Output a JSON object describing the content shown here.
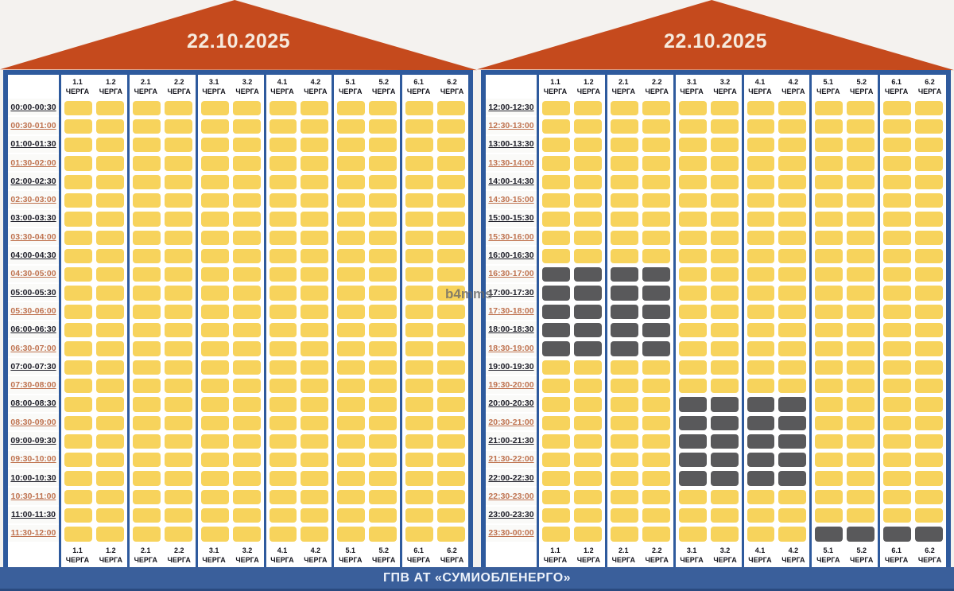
{
  "watermark": "b4mms",
  "footer": {
    "title": "ГПВ АТ «СУМИОБЛЕНЕРГО»"
  },
  "queue_label": "ЧЕРГА",
  "colors": {
    "roof_orange": "#C54A1D",
    "border_blue": "#2E5A9D",
    "footer_blue": "#3A5F9B",
    "cell_on": "#F7D35C",
    "cell_off": "#59595B",
    "time_text_dark": "#20202A",
    "time_text_orange": "#BF7350"
  },
  "chart_data": {
    "type": "heatmap",
    "columns": [
      "1.1",
      "1.2",
      "2.1",
      "2.2",
      "3.1",
      "3.2",
      "4.1",
      "4.2",
      "5.1",
      "5.2",
      "6.1",
      "6.2"
    ],
    "cell_states": {
      "on": "#F7D35C",
      "off": "#59595B"
    },
    "panels": [
      {
        "date": "22.10.2025",
        "times": [
          "00:00-00:30",
          "00:30-01:00",
          "01:00-01:30",
          "01:30-02:00",
          "02:00-02:30",
          "02:30-03:00",
          "03:00-03:30",
          "03:30-04:00",
          "04:00-04:30",
          "04:30-05:00",
          "05:00-05:30",
          "05:30-06:00",
          "06:00-06:30",
          "06:30-07:00",
          "07:00-07:30",
          "07:30-08:00",
          "08:00-08:30",
          "08:30-09:00",
          "09:00-09:30",
          "09:30-10:00",
          "10:00-10:30",
          "10:30-11:00",
          "11:00-11:30",
          "11:30-12:00"
        ],
        "outages": {}
      },
      {
        "date": "22.10.2025",
        "times": [
          "12:00-12:30",
          "12:30-13:00",
          "13:00-13:30",
          "13:30-14:00",
          "14:00-14:30",
          "14:30-15:00",
          "15:00-15:30",
          "15:30-16:00",
          "16:00-16:30",
          "16:30-17:00",
          "17:00-17:30",
          "17:30-18:00",
          "18:00-18:30",
          "18:30-19:00",
          "19:00-19:30",
          "19:30-20:00",
          "20:00-20:30",
          "20:30-21:00",
          "21:00-21:30",
          "21:30-22:00",
          "22:00-22:30",
          "22:30-23:00",
          "23:00-23:30",
          "23:30-00:00"
        ],
        "outages": {
          "16:30-17:00": [
            "1.1",
            "1.2",
            "2.1",
            "2.2"
          ],
          "17:00-17:30": [
            "1.1",
            "1.2",
            "2.1",
            "2.2"
          ],
          "17:30-18:00": [
            "1.1",
            "1.2",
            "2.1",
            "2.2"
          ],
          "18:00-18:30": [
            "1.1",
            "1.2",
            "2.1",
            "2.2"
          ],
          "18:30-19:00": [
            "1.1",
            "1.2",
            "2.1",
            "2.2"
          ],
          "20:00-20:30": [
            "3.1",
            "3.2",
            "4.1",
            "4.2"
          ],
          "20:30-21:00": [
            "3.1",
            "3.2",
            "4.1",
            "4.2"
          ],
          "21:00-21:30": [
            "3.1",
            "3.2",
            "4.1",
            "4.2"
          ],
          "21:30-22:00": [
            "3.1",
            "3.2",
            "4.1",
            "4.2"
          ],
          "22:00-22:30": [
            "3.1",
            "3.2",
            "4.1",
            "4.2"
          ],
          "23:30-00:00": [
            "5.1",
            "5.2",
            "6.1",
            "6.2"
          ]
        }
      }
    ]
  }
}
